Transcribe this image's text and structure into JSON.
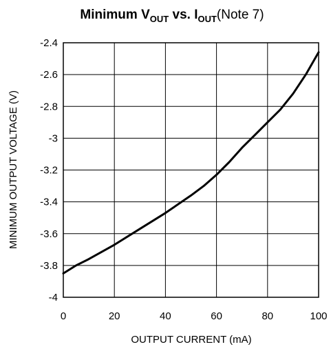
{
  "chart_data": {
    "type": "line",
    "title": {
      "prefix": "Minimum V",
      "sub1": "OUT",
      "middle": " vs. I",
      "sub2": "OUT",
      "note": "(Note 7)"
    },
    "xlabel": "OUTPUT CURRENT (mA)",
    "ylabel": "MINIMUM OUTPUT VOLTAGE (V)",
    "xlim": [
      0,
      100
    ],
    "ylim": [
      -4,
      -2.4
    ],
    "grid": true,
    "x_ticks": [
      0,
      20,
      40,
      60,
      80,
      100
    ],
    "x_tick_labels": [
      "0",
      "20",
      "40",
      "60",
      "80",
      "100"
    ],
    "y_ticks": [
      -2.4,
      -2.6,
      -2.8,
      -3,
      -3.2,
      -3.4,
      -3.6,
      -3.8,
      -4
    ],
    "y_tick_labels": [
      "-2.4",
      "-2.6",
      "-2.8",
      "-3",
      "-3.2",
      "-3.4",
      "-3.6",
      "-3.8",
      "-4"
    ],
    "series": [
      {
        "x": [
          0,
          5,
          10,
          20,
          30,
          40,
          50,
          55,
          60,
          65,
          70,
          75,
          80,
          85,
          90,
          95,
          100
        ],
        "y": [
          -3.85,
          -3.8,
          -3.76,
          -3.67,
          -3.57,
          -3.47,
          -3.36,
          -3.3,
          -3.23,
          -3.15,
          -3.06,
          -2.98,
          -2.9,
          -2.82,
          -2.72,
          -2.6,
          -2.46
        ]
      }
    ]
  }
}
